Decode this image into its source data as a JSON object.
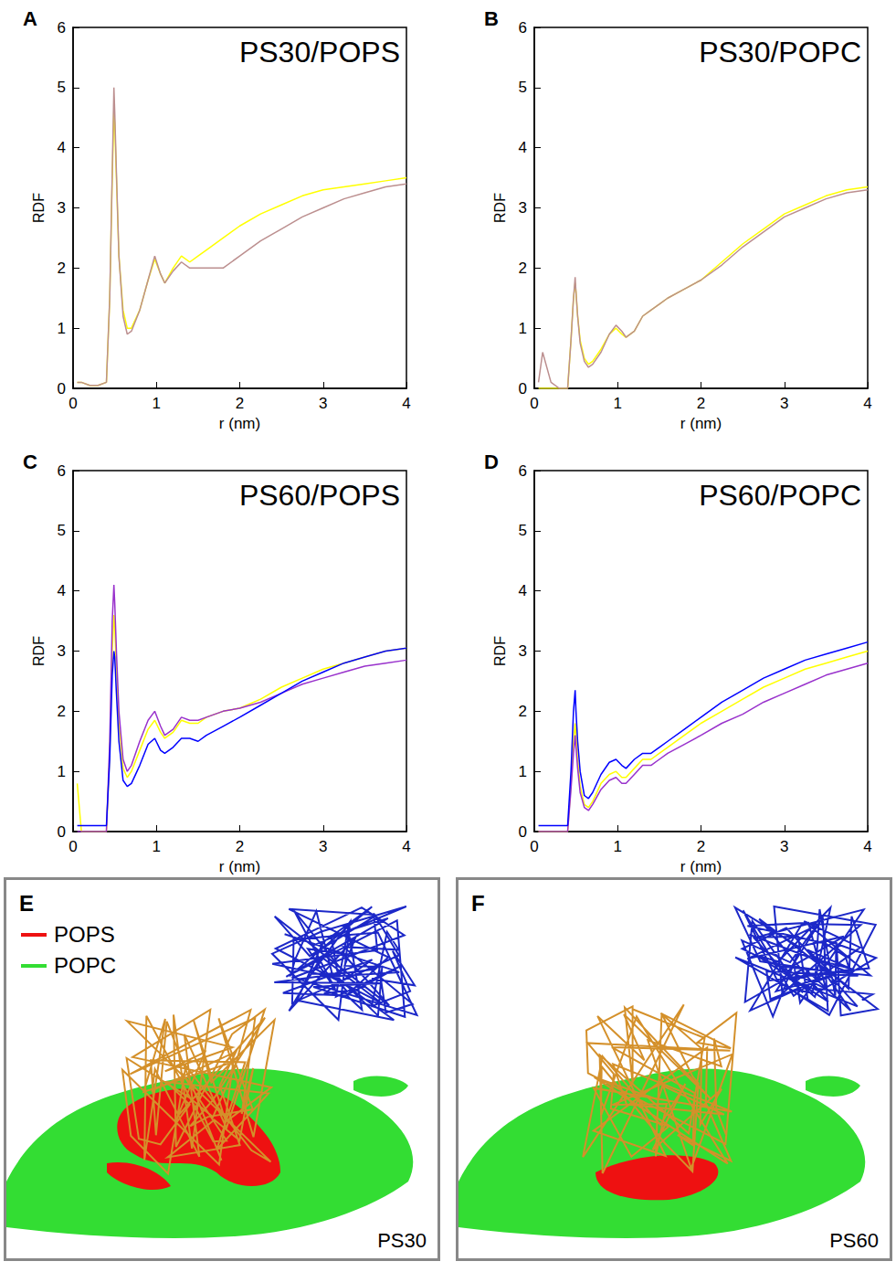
{
  "chart_data": [
    {
      "type": "line",
      "panel_label": "A",
      "title": "PS30/POPS",
      "x_label": "r (nm)",
      "y_label": "RDF",
      "xlim": [
        0,
        4
      ],
      "xticks": [
        0,
        1,
        2,
        3,
        4
      ],
      "ylim": [
        0,
        6
      ],
      "yticks": [
        0,
        1,
        2,
        3,
        4,
        5,
        6
      ],
      "grid": false,
      "marker": "none",
      "x": [
        0.05,
        0.1,
        0.2,
        0.3,
        0.4,
        0.44,
        0.47,
        0.49,
        0.5,
        0.52,
        0.55,
        0.6,
        0.65,
        0.7,
        0.8,
        0.9,
        0.98,
        1.05,
        1.1,
        1.2,
        1.3,
        1.4,
        1.5,
        1.6,
        1.8,
        2.0,
        2.25,
        2.5,
        2.75,
        3.0,
        3.25,
        3.5,
        3.75,
        4.0
      ],
      "series": [
        {
          "color": "#ffff00",
          "values": [
            0.1,
            0.1,
            0.05,
            0.05,
            0.1,
            1.5,
            3.5,
            4.6,
            4.4,
            3.5,
            2.2,
            1.3,
            1.0,
            1.0,
            1.3,
            1.8,
            2.15,
            1.9,
            1.75,
            2.0,
            2.2,
            2.1,
            2.2,
            2.3,
            2.5,
            2.7,
            2.9,
            3.05,
            3.2,
            3.3,
            3.35,
            3.4,
            3.45,
            3.5
          ]
        },
        {
          "color": "#bc8f8f",
          "values": [
            0.1,
            0.1,
            0.05,
            0.05,
            0.1,
            1.5,
            3.6,
            5.0,
            4.6,
            3.6,
            2.2,
            1.2,
            0.9,
            0.95,
            1.3,
            1.8,
            2.2,
            1.9,
            1.75,
            1.95,
            2.1,
            2.0,
            2.0,
            2.0,
            2.0,
            2.2,
            2.45,
            2.65,
            2.85,
            3.0,
            3.15,
            3.25,
            3.35,
            3.4
          ]
        }
      ]
    },
    {
      "type": "line",
      "panel_label": "B",
      "title": "PS30/POPC",
      "x_label": "r (nm)",
      "y_label": "RDF",
      "xlim": [
        0,
        4
      ],
      "xticks": [
        0,
        1,
        2,
        3,
        4
      ],
      "ylim": [
        0,
        6
      ],
      "yticks": [
        0,
        1,
        2,
        3,
        4,
        5,
        6
      ],
      "grid": false,
      "marker": "none",
      "x": [
        0.05,
        0.1,
        0.2,
        0.3,
        0.4,
        0.44,
        0.47,
        0.49,
        0.5,
        0.52,
        0.55,
        0.6,
        0.65,
        0.7,
        0.8,
        0.9,
        0.98,
        1.05,
        1.1,
        1.2,
        1.3,
        1.4,
        1.5,
        1.6,
        1.8,
        2.0,
        2.25,
        2.5,
        2.75,
        3.0,
        3.25,
        3.5,
        3.75,
        4.0
      ],
      "series": [
        {
          "color": "#ffff00",
          "values": [
            0,
            0,
            0,
            0,
            0,
            0.8,
            1.5,
            1.75,
            1.6,
            1.2,
            0.8,
            0.5,
            0.4,
            0.45,
            0.65,
            0.9,
            1.0,
            0.9,
            0.85,
            0.95,
            1.2,
            1.3,
            1.4,
            1.5,
            1.65,
            1.8,
            2.1,
            2.4,
            2.65,
            2.9,
            3.05,
            3.2,
            3.3,
            3.35
          ]
        },
        {
          "color": "#bc8f8f",
          "values": [
            0.1,
            0.6,
            0.1,
            0,
            0,
            0.8,
            1.5,
            1.85,
            1.6,
            1.2,
            0.75,
            0.45,
            0.35,
            0.4,
            0.6,
            0.9,
            1.05,
            0.95,
            0.85,
            0.95,
            1.2,
            1.3,
            1.4,
            1.5,
            1.65,
            1.8,
            2.05,
            2.35,
            2.6,
            2.85,
            3.0,
            3.15,
            3.25,
            3.3
          ]
        }
      ]
    },
    {
      "type": "line",
      "panel_label": "C",
      "title": "PS60/POPS",
      "x_label": "r (nm)",
      "y_label": "RDF",
      "xlim": [
        0,
        4
      ],
      "xticks": [
        0,
        1,
        2,
        3,
        4
      ],
      "ylim": [
        0,
        6
      ],
      "yticks": [
        0,
        1,
        2,
        3,
        4,
        5,
        6
      ],
      "grid": false,
      "marker": "none",
      "x": [
        0.05,
        0.1,
        0.2,
        0.3,
        0.4,
        0.44,
        0.47,
        0.49,
        0.5,
        0.52,
        0.55,
        0.6,
        0.65,
        0.7,
        0.8,
        0.9,
        0.98,
        1.05,
        1.1,
        1.2,
        1.3,
        1.4,
        1.5,
        1.6,
        1.8,
        2.0,
        2.25,
        2.5,
        2.75,
        3.0,
        3.25,
        3.5,
        3.75,
        4.0
      ],
      "series": [
        {
          "color": "#ffff00",
          "values": [
            0.8,
            0,
            0,
            0,
            0,
            1.3,
            3.0,
            3.6,
            3.4,
            2.7,
            1.8,
            1.05,
            0.9,
            1.0,
            1.35,
            1.7,
            1.85,
            1.65,
            1.55,
            1.65,
            1.85,
            1.8,
            1.8,
            1.9,
            2.0,
            2.05,
            2.2,
            2.4,
            2.55,
            2.7,
            2.8,
            2.9,
            3.0,
            3.05
          ]
        },
        {
          "color": "#9932cc",
          "values": [
            0,
            0,
            0,
            0,
            0,
            1.5,
            3.5,
            4.1,
            3.8,
            3.0,
            2.0,
            1.2,
            1.0,
            1.1,
            1.5,
            1.85,
            2.0,
            1.75,
            1.6,
            1.7,
            1.9,
            1.85,
            1.85,
            1.9,
            2.0,
            2.05,
            2.15,
            2.3,
            2.45,
            2.55,
            2.65,
            2.75,
            2.8,
            2.85
          ]
        },
        {
          "color": "#0000ff",
          "values": [
            0.1,
            0.1,
            0.1,
            0.1,
            0.1,
            1.2,
            2.6,
            3.0,
            2.9,
            2.3,
            1.5,
            0.85,
            0.75,
            0.8,
            1.1,
            1.45,
            1.55,
            1.35,
            1.3,
            1.4,
            1.55,
            1.55,
            1.5,
            1.6,
            1.75,
            1.9,
            2.1,
            2.3,
            2.5,
            2.65,
            2.8,
            2.9,
            3.0,
            3.05
          ]
        }
      ]
    },
    {
      "type": "line",
      "panel_label": "D",
      "title": "PS60/POPC",
      "x_label": "r (nm)",
      "y_label": "RDF",
      "xlim": [
        0,
        4
      ],
      "xticks": [
        0,
        1,
        2,
        3,
        4
      ],
      "ylim": [
        0,
        6
      ],
      "yticks": [
        0,
        1,
        2,
        3,
        4,
        5,
        6
      ],
      "grid": false,
      "marker": "none",
      "x": [
        0.05,
        0.1,
        0.2,
        0.3,
        0.4,
        0.44,
        0.47,
        0.49,
        0.5,
        0.52,
        0.55,
        0.6,
        0.65,
        0.7,
        0.8,
        0.9,
        0.98,
        1.05,
        1.1,
        1.2,
        1.3,
        1.4,
        1.5,
        1.6,
        1.8,
        2.0,
        2.25,
        2.5,
        2.75,
        3.0,
        3.25,
        3.5,
        3.75,
        4.0
      ],
      "series": [
        {
          "color": "#ffff00",
          "values": [
            0,
            0,
            0,
            0,
            0,
            0.8,
            1.5,
            1.8,
            1.6,
            1.2,
            0.75,
            0.45,
            0.4,
            0.5,
            0.8,
            0.95,
            1.0,
            0.9,
            0.9,
            1.05,
            1.2,
            1.2,
            1.3,
            1.4,
            1.6,
            1.8,
            2.0,
            2.2,
            2.4,
            2.55,
            2.7,
            2.8,
            2.9,
            3.0
          ]
        },
        {
          "color": "#9932cc",
          "values": [
            0,
            0,
            0,
            0,
            0,
            0.7,
            1.3,
            1.6,
            1.4,
            1.05,
            0.65,
            0.4,
            0.35,
            0.45,
            0.7,
            0.85,
            0.9,
            0.8,
            0.8,
            0.95,
            1.1,
            1.1,
            1.2,
            1.3,
            1.45,
            1.6,
            1.8,
            1.95,
            2.15,
            2.3,
            2.45,
            2.6,
            2.7,
            2.8
          ]
        },
        {
          "color": "#0000ff",
          "values": [
            0.1,
            0.1,
            0.1,
            0.1,
            0.1,
            1.0,
            2.0,
            2.35,
            2.0,
            1.5,
            1.0,
            0.6,
            0.55,
            0.65,
            0.95,
            1.15,
            1.2,
            1.1,
            1.05,
            1.2,
            1.3,
            1.3,
            1.4,
            1.5,
            1.7,
            1.9,
            2.15,
            2.35,
            2.55,
            2.7,
            2.85,
            2.95,
            3.05,
            3.15
          ]
        }
      ]
    }
  ],
  "images": [
    {
      "panel_label": "E",
      "label": "PS30",
      "legend": [
        {
          "name": "POPS",
          "color": "#ee1111"
        },
        {
          "name": "POPC",
          "color": "#33dd33"
        }
      ]
    },
    {
      "panel_label": "F",
      "label": "PS60"
    }
  ]
}
